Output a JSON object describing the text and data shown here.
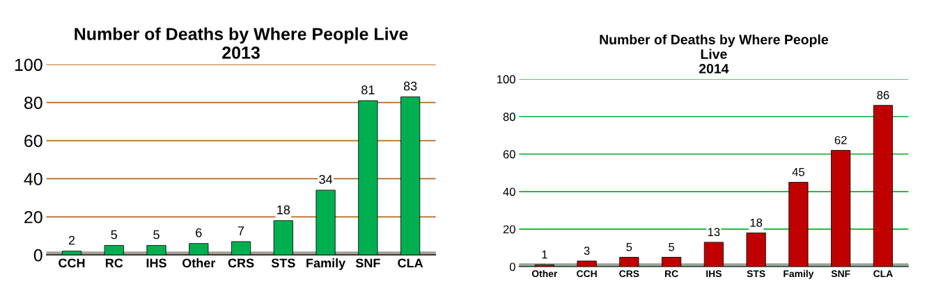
{
  "chart_data": [
    {
      "type": "bar",
      "title": "Number of Deaths by Where People Live\n2013",
      "categories": [
        "CCH",
        "RC",
        "IHS",
        "Other",
        "CRS",
        "STS",
        "Family",
        "SNF",
        "CLA"
      ],
      "values": [
        2,
        5,
        5,
        6,
        7,
        18,
        34,
        81,
        83
      ],
      "color": "#00b050",
      "ylim": [
        0,
        100
      ],
      "yticks": [
        0,
        20,
        40,
        60,
        80,
        100
      ],
      "grid": "y",
      "data_labels": true
    },
    {
      "type": "bar",
      "title": "Number of Deaths by Where People\nLive\n2014",
      "categories": [
        "Other",
        "CCH",
        "CRS",
        "RC",
        "IHS",
        "STS",
        "Family",
        "SNF",
        "CLA"
      ],
      "values": [
        1,
        3,
        5,
        5,
        13,
        18,
        45,
        62,
        86
      ],
      "color": "#c00000",
      "ylim": [
        0,
        100
      ],
      "yticks": [
        0,
        20,
        40,
        60,
        80,
        100
      ],
      "grid": "y",
      "data_labels": true
    }
  ]
}
